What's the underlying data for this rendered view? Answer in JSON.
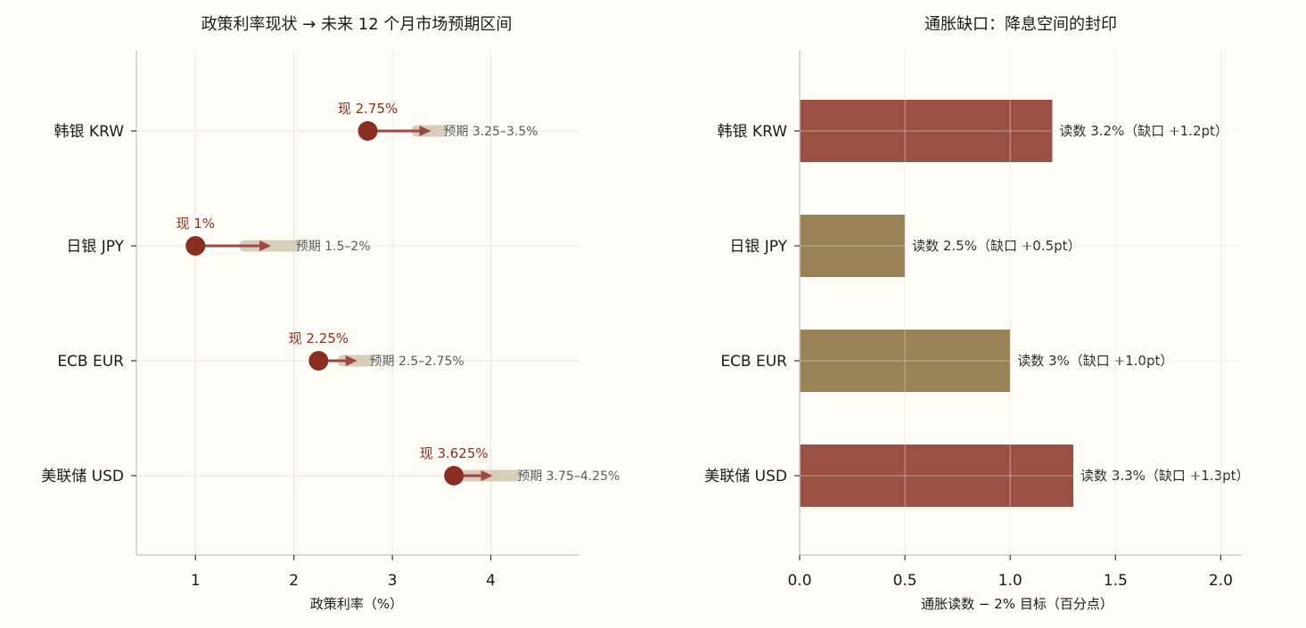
{
  "chart_data": [
    {
      "type": "dot-range",
      "title": "政策利率现状 → 未来 12 个月市场预期区间",
      "xlabel": "政策利率（%）",
      "xlim": [
        0.4,
        4.9
      ],
      "xticks": [
        1,
        2,
        3,
        4
      ],
      "xtick_labels": [
        "1",
        "2",
        "3",
        "4"
      ],
      "grid": true,
      "categories": [
        "韩银 KRW",
        "日银 JPY",
        "ECB EUR",
        "美联储 USD"
      ],
      "current": [
        2.75,
        1,
        2.25,
        3.625
      ],
      "expected_low": [
        3.25,
        1.5,
        2.5,
        3.75
      ],
      "expected_high": [
        3.5,
        2,
        2.75,
        4.25
      ],
      "current_labels": [
        "现 2.75%",
        "现 1%",
        "现 2.25%",
        "现 3.625%"
      ],
      "expected_labels": [
        "预期 3.25–3.5%",
        "预期 1.5–2%",
        "预期 2.5–2.75%",
        "预期 3.75–4.25%"
      ],
      "colors": {
        "point": "#8b2e22",
        "arrow": "#9a4a40",
        "range": "#d8ccbb"
      }
    },
    {
      "type": "bar",
      "orientation": "horizontal",
      "title": "通胀缺口：降息空间的封印",
      "xlabel": "通胀读数 − 2% 目标（百分点）",
      "xlim": [
        0,
        2.1
      ],
      "xticks": [
        0,
        0.5,
        1,
        1.5,
        2
      ],
      "xtick_labels": [
        "0.0",
        "0.5",
        "1.0",
        "1.5",
        "2.0"
      ],
      "grid": true,
      "categories": [
        "韩银 KRW",
        "日银 JPY",
        "ECB EUR",
        "美联储 USD"
      ],
      "values": [
        1.2,
        0.5,
        1.0,
        1.3
      ],
      "bar_labels": [
        "读数 3.2%（缺口 +1.2pt）",
        "读数 2.5%（缺口 +0.5pt）",
        "读数 3%（缺口 +1.0pt）",
        "读数 3.3%（缺口 +1.3pt）"
      ],
      "bar_colors": [
        "#9b5044",
        "#9a8257",
        "#9a8257",
        "#9b5044"
      ]
    }
  ]
}
